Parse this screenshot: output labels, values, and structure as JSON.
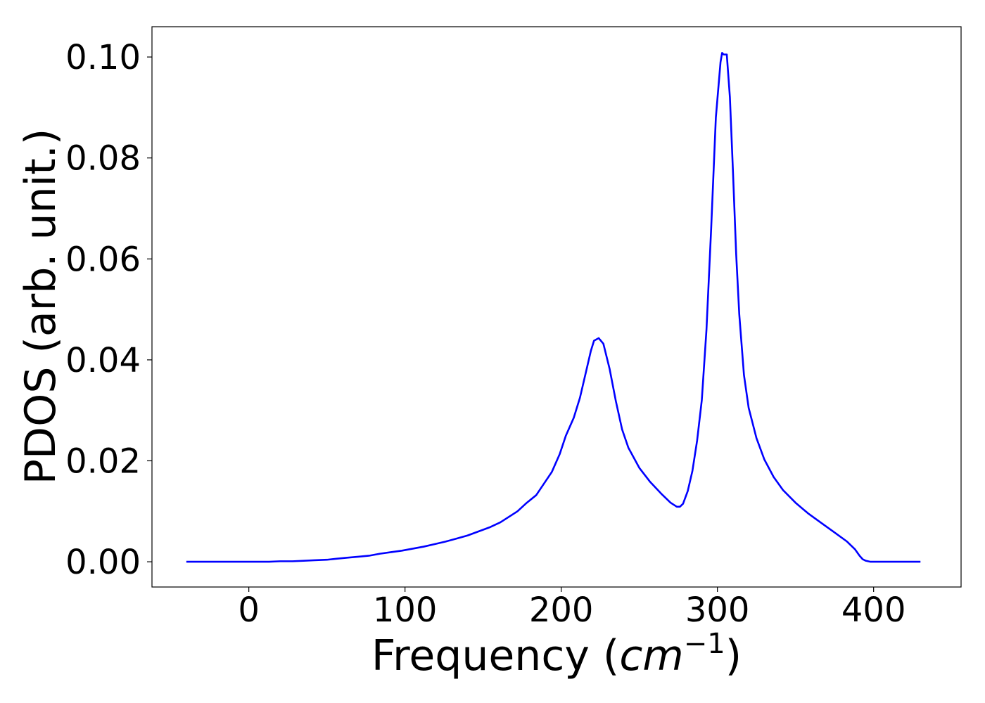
{
  "chart_data": {
    "type": "line",
    "title": "",
    "xlabel": "Frequency (",
    "xlabel_math": "cm",
    "xlabel_sup": "−1",
    "xlabel_close": ")",
    "ylabel": "PDOS (arb. unit.)",
    "xlim": [
      -62,
      456
    ],
    "ylim": [
      -0.005,
      0.106
    ],
    "x_ticks": [
      0,
      100,
      200,
      300,
      400
    ],
    "x_tick_labels": [
      "0",
      "100",
      "200",
      "300",
      "400"
    ],
    "y_ticks": [
      0.0,
      0.02,
      0.04,
      0.06,
      0.08,
      0.1
    ],
    "y_tick_labels": [
      "0.00",
      "0.02",
      "0.04",
      "0.06",
      "0.08",
      "0.10"
    ],
    "grid": false,
    "legend": "none",
    "series": [
      {
        "color": "#0000ff",
        "x": [
          -40,
          0,
          13,
          20,
          28,
          35,
          42,
          50,
          56,
          63,
          70,
          77,
          84,
          91,
          98,
          105,
          112,
          119,
          126,
          133,
          140,
          147,
          154,
          161,
          168,
          172,
          178,
          184,
          189,
          194,
          199,
          203,
          208,
          212,
          216,
          219,
          221,
          224,
          227,
          231,
          235,
          239,
          243,
          250,
          257,
          264,
          270,
          274,
          276,
          278,
          281,
          284,
          287,
          290,
          293,
          296,
          299,
          302,
          303,
          304,
          306,
          308,
          310,
          312,
          314,
          317,
          320,
          325,
          330,
          336,
          342,
          350,
          358,
          366,
          375,
          383,
          388,
          391,
          393,
          395,
          398,
          402,
          410,
          430
        ],
        "y": [
          0.0,
          0.0,
          0.0,
          0.0001,
          0.0001,
          0.0002,
          0.0003,
          0.0004,
          0.0006,
          0.0008,
          0.001,
          0.0012,
          0.0016,
          0.0019,
          0.0022,
          0.0026,
          0.003,
          0.0035,
          0.004,
          0.0046,
          0.0052,
          0.006,
          0.0068,
          0.0078,
          0.0092,
          0.01,
          0.0117,
          0.0132,
          0.0155,
          0.0178,
          0.0213,
          0.025,
          0.0285,
          0.0325,
          0.0378,
          0.0418,
          0.0438,
          0.0443,
          0.0432,
          0.0382,
          0.0318,
          0.0262,
          0.0226,
          0.0186,
          0.0158,
          0.0135,
          0.0117,
          0.0109,
          0.0109,
          0.0115,
          0.014,
          0.018,
          0.024,
          0.032,
          0.046,
          0.066,
          0.088,
          0.099,
          0.1008,
          0.1005,
          0.1005,
          0.092,
          0.077,
          0.061,
          0.049,
          0.037,
          0.0305,
          0.0245,
          0.0203,
          0.0168,
          0.0142,
          0.0117,
          0.0096,
          0.0078,
          0.0058,
          0.004,
          0.0025,
          0.0012,
          0.0005,
          0.0002,
          0.0,
          0.0,
          0.0,
          0.0
        ]
      }
    ]
  }
}
